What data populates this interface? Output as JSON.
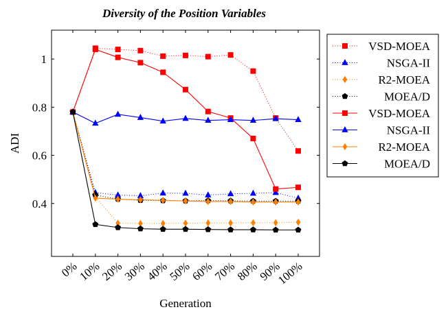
{
  "chart_data": {
    "type": "line",
    "title": "Diversity of the Position Variables",
    "xlabel": "Generation",
    "ylabel": "ADI",
    "categories": [
      "0%",
      "10%",
      "20%",
      "30%",
      "40%",
      "50%",
      "60%",
      "70%",
      "80%",
      "90%",
      "100%"
    ],
    "ylim": [
      0.18,
      1.12
    ],
    "yticks": [
      0.4,
      0.6,
      0.8,
      1
    ],
    "ytick_labels": [
      "0.4",
      "0.6",
      "0.8",
      "1"
    ],
    "grid": false,
    "legend_position": "outside-right",
    "series": [
      {
        "name": "VSD-MOEA",
        "style": "dotted",
        "color": "#ff0000",
        "marker": "square",
        "values": [
          0.78,
          1.045,
          1.04,
          1.035,
          1.012,
          1.015,
          1.01,
          1.017,
          0.95,
          0.755,
          0.618
        ]
      },
      {
        "name": "NSGA-II",
        "style": "dotted",
        "color": "#0000ff",
        "marker": "triangle",
        "values": [
          0.78,
          0.445,
          0.435,
          0.432,
          0.443,
          0.442,
          0.435,
          0.44,
          0.442,
          0.445,
          0.422
        ]
      },
      {
        "name": "R2-MOEA",
        "style": "dotted",
        "color": "#ff8000",
        "marker": "diamond",
        "values": [
          0.78,
          0.428,
          0.318,
          0.317,
          0.317,
          0.318,
          0.319,
          0.319,
          0.32,
          0.32,
          0.322
        ]
      },
      {
        "name": "MOEA/D",
        "style": "dotted",
        "color": "#000000",
        "marker": "pentagon",
        "values": [
          0.78,
          0.435,
          0.418,
          0.413,
          0.412,
          0.411,
          0.412,
          0.411,
          0.41,
          0.41,
          0.41
        ]
      },
      {
        "name": "VSD-MOEA",
        "style": "solid",
        "color": "#ff0000",
        "marker": "square",
        "values": [
          0.78,
          1.04,
          1.007,
          0.985,
          0.945,
          0.873,
          0.782,
          0.755,
          0.67,
          0.46,
          0.467
        ]
      },
      {
        "name": "NSGA-II",
        "style": "solid",
        "color": "#0000ff",
        "marker": "triangle",
        "values": [
          0.78,
          0.733,
          0.77,
          0.757,
          0.742,
          0.753,
          0.745,
          0.748,
          0.745,
          0.752,
          0.748
        ]
      },
      {
        "name": "R2-MOEA",
        "style": "solid",
        "color": "#ff8000",
        "marker": "diamond",
        "values": [
          0.78,
          0.422,
          0.418,
          0.415,
          0.413,
          0.41,
          0.408,
          0.408,
          0.406,
          0.406,
          0.406
        ]
      },
      {
        "name": "MOEA/D",
        "style": "solid",
        "color": "#000000",
        "marker": "pentagon",
        "values": [
          0.78,
          0.313,
          0.3,
          0.295,
          0.293,
          0.293,
          0.292,
          0.291,
          0.291,
          0.29,
          0.29
        ]
      }
    ]
  }
}
